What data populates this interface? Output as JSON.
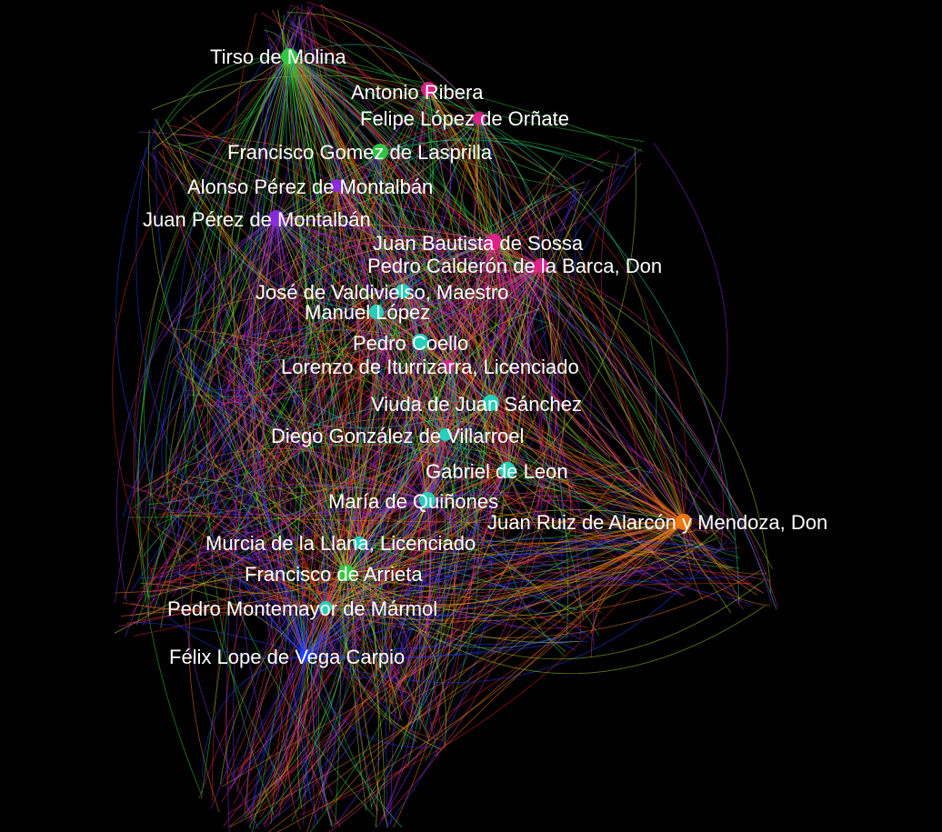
{
  "graph": {
    "background": "#000000",
    "community_colors": {
      "green": "#2ecc40",
      "magenta": "#e0208a",
      "purple": "#8a2be2",
      "cyan": "#20d6c0",
      "orange": "#f07a10",
      "blue": "#2040ff",
      "yellow": "#d8d820",
      "red": "#e02020",
      "lime": "#a0d020",
      "redorange": "#e04010"
    },
    "nodes": [
      {
        "id": "tirso",
        "label": "Tirso de Molina",
        "color": "green"
      },
      {
        "id": "ribera",
        "label": "Antonio Ribera",
        "color": "magenta"
      },
      {
        "id": "orinate",
        "label": "Felipe López de Orñate",
        "color": "magenta"
      },
      {
        "id": "lasprilla",
        "label": "Francisco Gomez de Lasprilla",
        "color": "green"
      },
      {
        "id": "alonso",
        "label": "Alonso Pérez de Montalbán",
        "color": "purple"
      },
      {
        "id": "juanperez",
        "label": "Juan Pérez de Montalbán",
        "color": "purple"
      },
      {
        "id": "sossa",
        "label": "Juan Bautista de Sossa",
        "color": "magenta"
      },
      {
        "id": "calderon",
        "label": "Pedro Calderón de la Barca, Don",
        "color": "magenta"
      },
      {
        "id": "valdivielso",
        "label": "José de Valdivielso, Maestro",
        "color": "cyan"
      },
      {
        "id": "manuel",
        "label": "Manuel López",
        "color": "cyan"
      },
      {
        "id": "coello",
        "label": "Pedro Coello",
        "color": "cyan"
      },
      {
        "id": "iturrizarra",
        "label": "Lorenzo de Iturrizarra, Licenciado",
        "color": "magenta"
      },
      {
        "id": "viuda",
        "label": "Viuda de Juan Sánchez",
        "color": "cyan"
      },
      {
        "id": "villarroel",
        "label": "Diego González de Villarroel",
        "color": "cyan"
      },
      {
        "id": "gabriel",
        "label": "Gabriel de Leon",
        "color": "cyan"
      },
      {
        "id": "quinones",
        "label": "María de Quiñones",
        "color": "cyan"
      },
      {
        "id": "alarcon",
        "label": "Juan Ruiz de Alarcón y Mendoza, Don",
        "color": "orange"
      },
      {
        "id": "murcia",
        "label": "Murcia de la Llana, Licenciado",
        "color": "cyan"
      },
      {
        "id": "arrieta",
        "label": "Francisco de Arrieta",
        "color": "green"
      },
      {
        "id": "montemayor",
        "label": "Pedro Montemayor de Mármol",
        "color": "cyan"
      },
      {
        "id": "lope",
        "label": "Félix Lope de Vega Carpio",
        "color": "blue"
      }
    ]
  }
}
